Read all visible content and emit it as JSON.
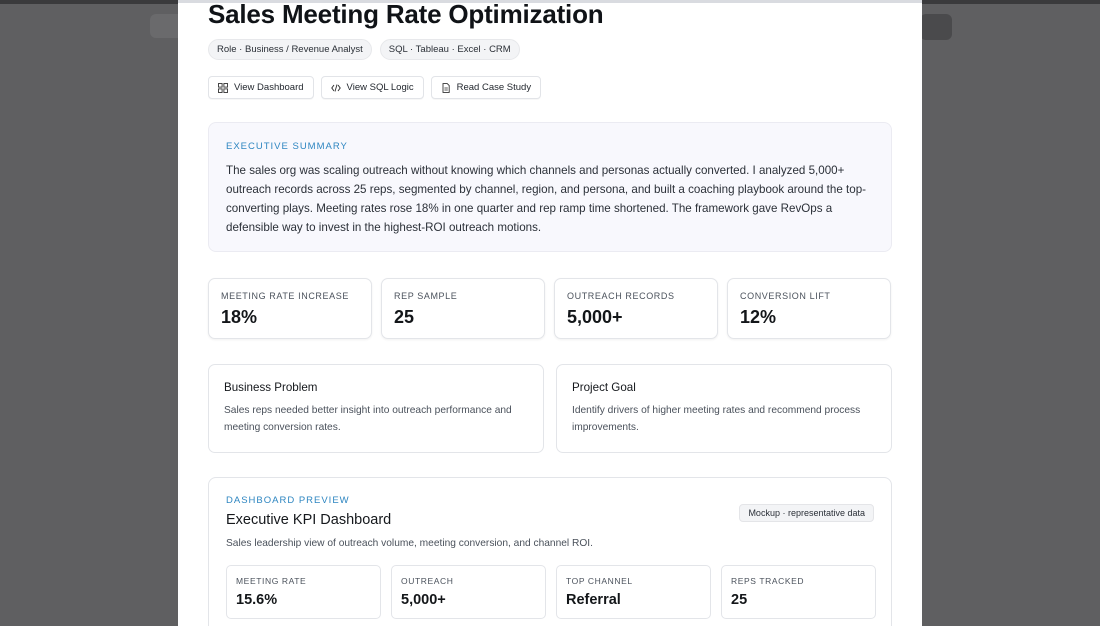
{
  "page": {
    "title": "Sales Meeting Rate Optimization",
    "chips": [
      "Role · Business / Revenue Analyst",
      "SQL · Tableau · Excel · CRM"
    ],
    "actions": [
      {
        "label": "View Dashboard",
        "icon": "dashboard-grid-icon"
      },
      {
        "label": "View SQL Logic",
        "icon": "code-icon"
      },
      {
        "label": "Read Case Study",
        "icon": "document-icon"
      }
    ]
  },
  "summary": {
    "eyebrow": "Executive Summary",
    "text": "The sales org was scaling outreach without knowing which channels and personas actually converted. I analyzed 5,000+ outreach records across 25 reps, segmented by channel, region, and persona, and built a coaching playbook around the top-converting plays. Meeting rates rose 18% in one quarter and rep ramp time shortened. The framework gave RevOps a defensible way to invest in the highest-ROI outreach motions."
  },
  "metrics": [
    {
      "label": "Meeting Rate Increase",
      "value": "18%"
    },
    {
      "label": "Rep Sample",
      "value": "25"
    },
    {
      "label": "Outreach Records",
      "value": "5,000+"
    },
    {
      "label": "Conversion Lift",
      "value": "12%"
    }
  ],
  "cards": [
    {
      "title": "Business Problem",
      "text": "Sales reps needed better insight into outreach performance and meeting conversion rates."
    },
    {
      "title": "Project Goal",
      "text": "Identify drivers of higher meeting rates and recommend process improvements."
    }
  ],
  "dashboard": {
    "eyebrow": "Dashboard Preview",
    "title": "Executive KPI Dashboard",
    "subtitle": "Sales leadership view of outreach volume, meeting conversion, and channel ROI.",
    "badge": "Mockup · representative data",
    "kpis": [
      {
        "label": "Meeting Rate",
        "value": "15.6%"
      },
      {
        "label": "Outreach",
        "value": "5,000+"
      },
      {
        "label": "Top Channel",
        "value": "Referral"
      },
      {
        "label": "Reps Tracked",
        "value": "25"
      }
    ]
  },
  "colors": {
    "accent": "#2e86c1",
    "backdrop": "#5f5f61",
    "summary_bg": "#f8f8fd"
  }
}
